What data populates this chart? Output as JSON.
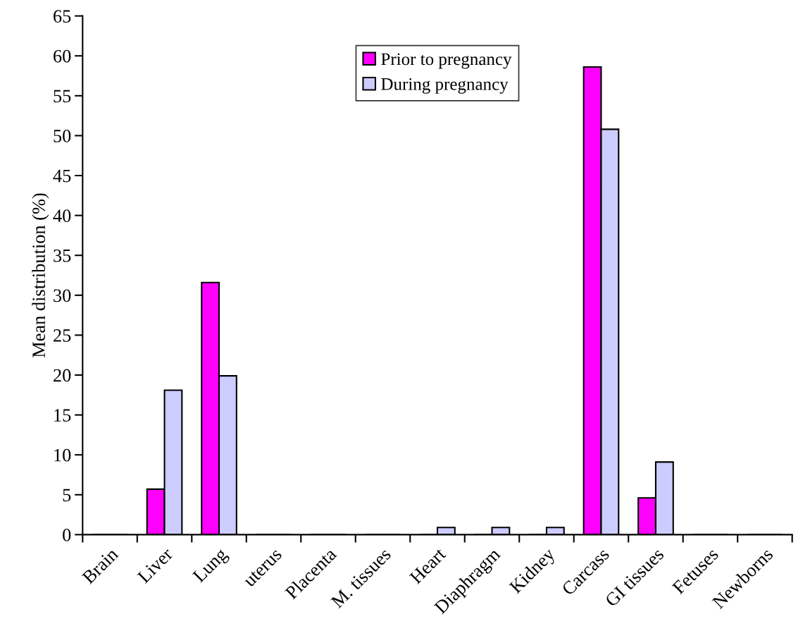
{
  "chart_data": {
    "type": "bar",
    "ylabel": "Mean distribution (%)",
    "categories": [
      "Brain",
      "Liver",
      "Lung",
      "uterus",
      "Placenta",
      "M. tissues",
      "Heart",
      "Diaphragm",
      "Kidney",
      "Carcass",
      "GI tissues",
      "Fetuses",
      "Newborns"
    ],
    "series": [
      {
        "name": "Prior to pregnancy",
        "color": "#ff00ff",
        "values": [
          0,
          5.7,
          31.6,
          0,
          0,
          0,
          0,
          0,
          0,
          58.6,
          4.6,
          0,
          0
        ]
      },
      {
        "name": "During pregnancy",
        "color": "#ccccff",
        "values": [
          0,
          18.1,
          19.9,
          0,
          0,
          0,
          0.9,
          0.9,
          0.9,
          50.8,
          9.1,
          0,
          0
        ]
      }
    ],
    "ylim": [
      0,
      65
    ],
    "yticks": [
      0,
      5,
      10,
      15,
      20,
      25,
      30,
      35,
      40,
      45,
      50,
      55,
      60,
      65
    ],
    "grid": false,
    "legend": "top"
  }
}
